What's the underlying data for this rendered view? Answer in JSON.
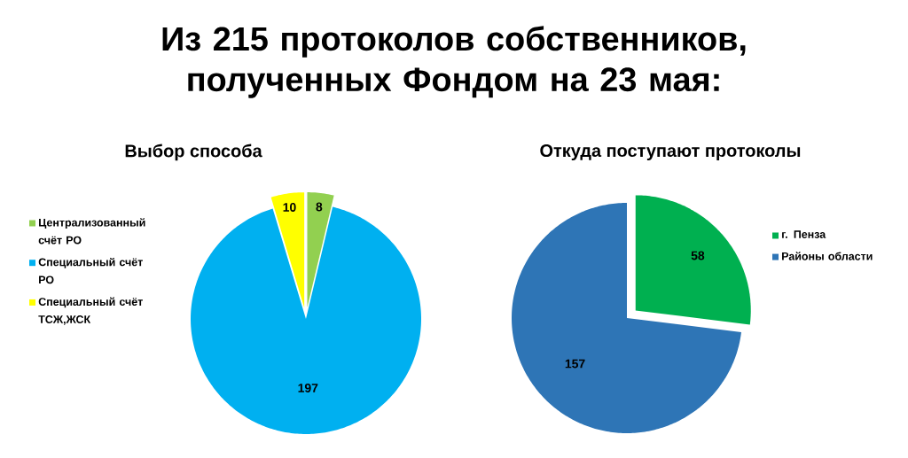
{
  "chart_data": [
    {
      "type": "pie",
      "title": "Из 215 протоколов собственников, полученных Фондом на 23 мая:",
      "subtitle": "Выбор способа",
      "categories": [
        "Централизованный счёт РО",
        "Специальный счёт РО",
        "Специальный счёт ТСЖ,ЖСК"
      ],
      "values": [
        8,
        197,
        10
      ],
      "colors": [
        "#92d050",
        "#00b0f0",
        "#ffff00"
      ],
      "data_labels": true,
      "legend": "left"
    },
    {
      "type": "pie",
      "title": "Откуда поступают протоколы",
      "categories": [
        "г. Пенза",
        "Районы области"
      ],
      "values": [
        58,
        157
      ],
      "colors": [
        "#00b050",
        "#2e75b6"
      ],
      "data_labels": true,
      "legend": "right"
    }
  ]
}
